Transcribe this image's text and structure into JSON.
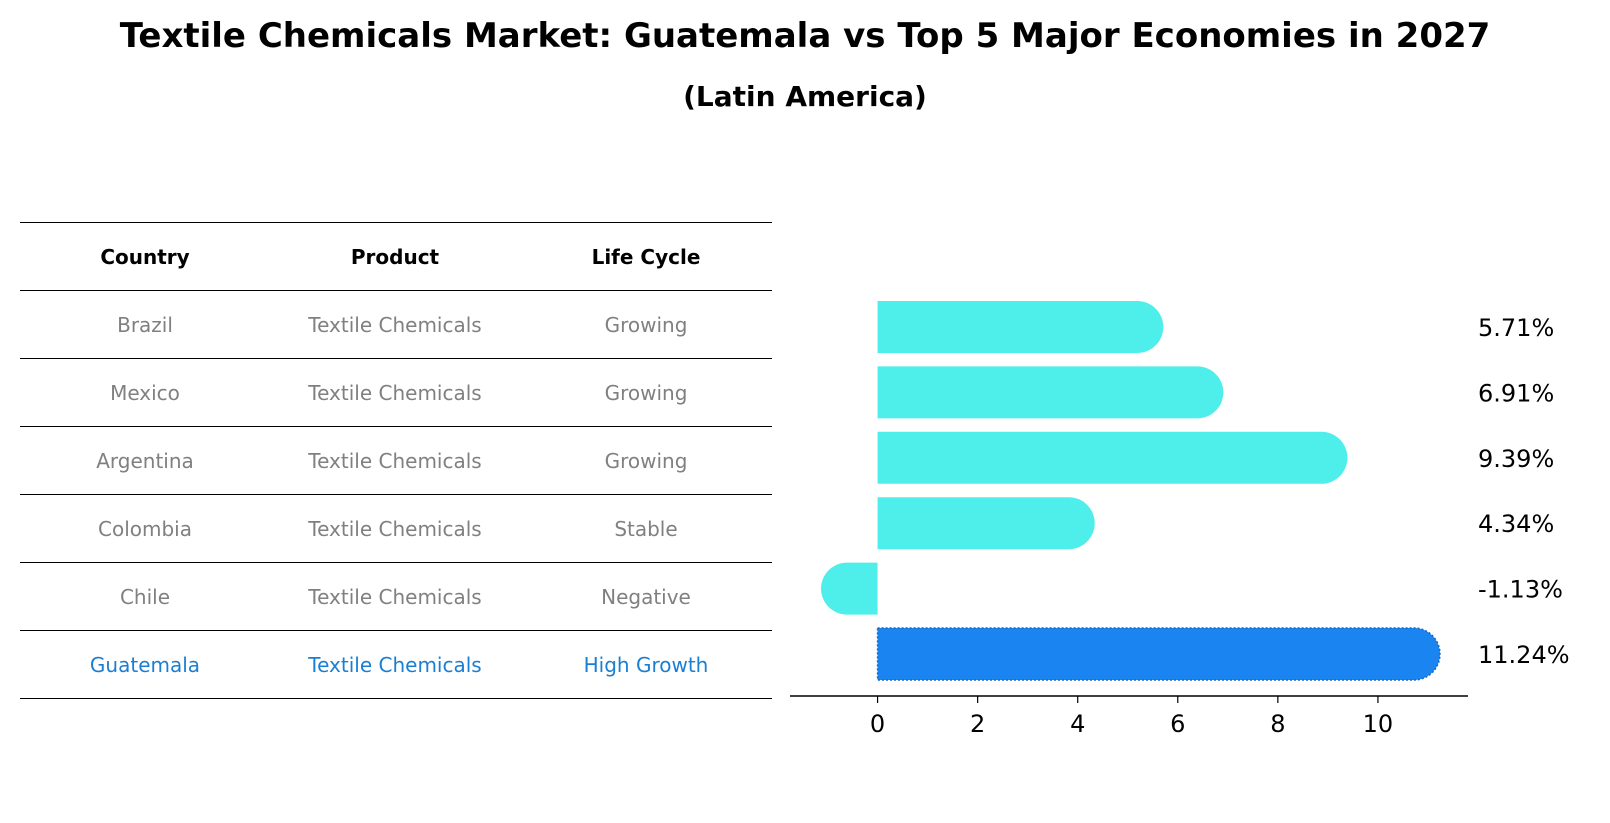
{
  "title": "Textile Chemicals Market: Guatemala vs Top 5 Major Economies in 2027",
  "subtitle": "(Latin America)",
  "table": {
    "headers": [
      "Country",
      "Product",
      "Life Cycle"
    ],
    "rows": [
      [
        "Brazil",
        "Textile Chemicals",
        "Growing"
      ],
      [
        "Mexico",
        "Textile Chemicals",
        "Growing"
      ],
      [
        "Argentina",
        "Textile Chemicals",
        "Growing"
      ],
      [
        "Colombia",
        "Textile Chemicals",
        "Stable"
      ],
      [
        "Chile",
        "Textile Chemicals",
        "Negative"
      ],
      [
        "Guatemala",
        "Textile Chemicals",
        "High Growth"
      ]
    ],
    "highlight_row": 5
  },
  "colors": {
    "bar": "#4eeeea",
    "highlight_bar": "#1a85f0",
    "highlight_text": "#1a7fd4",
    "muted_text": "#808080"
  },
  "chart_data": {
    "type": "bar",
    "orientation": "horizontal",
    "categories": [
      "Brazil",
      "Mexico",
      "Argentina",
      "Colombia",
      "Chile",
      "Guatemala"
    ],
    "values": [
      5.71,
      6.91,
      9.39,
      4.34,
      -1.13,
      11.24
    ],
    "value_labels": [
      "5.71%",
      "6.91%",
      "9.39%",
      "4.34%",
      "-1.13%",
      "11.24%"
    ],
    "highlight_index": 5,
    "xlim": [
      -1.75,
      11.8
    ],
    "xticks": [
      0,
      2,
      4,
      6,
      8,
      10
    ],
    "tick_labels": [
      "0",
      "2",
      "4",
      "6",
      "8",
      "10"
    ]
  }
}
